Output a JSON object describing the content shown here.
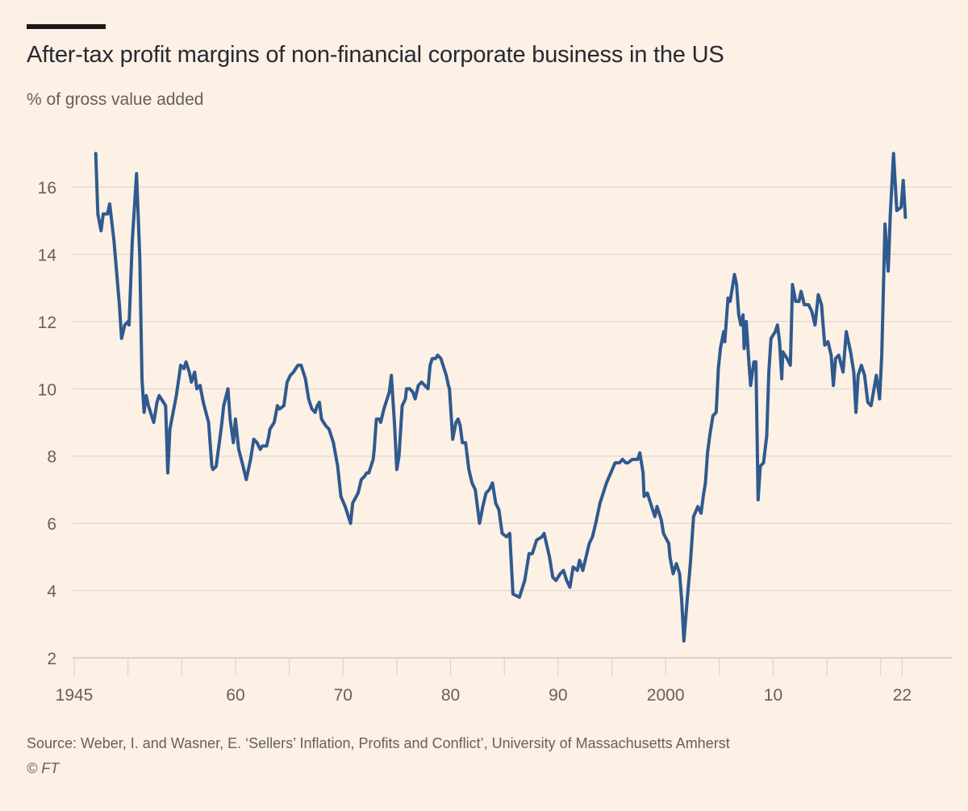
{
  "chart_data": {
    "type": "line",
    "title": "After-tax profit margins of non-financial corporate business in the US",
    "subtitle": "% of gross value added",
    "xlabel": "",
    "ylabel": "% of gross value added",
    "xlim": [
      1945,
      2025
    ],
    "ylim": [
      2,
      17.5
    ],
    "grid": true,
    "y_ticks": [
      2,
      4,
      6,
      8,
      10,
      12,
      14,
      16
    ],
    "y_tick_labels": [
      "2",
      "4",
      "6",
      "8",
      "10",
      "12",
      "14",
      "16"
    ],
    "x_tick_marks": [
      1945,
      1950,
      1955,
      1960,
      1965,
      1970,
      1975,
      1980,
      1985,
      1990,
      1995,
      2000,
      2005,
      2010,
      2015,
      2020,
      2022
    ],
    "x_labels": [
      {
        "year": 1945,
        "label": "1945"
      },
      {
        "year": 1960,
        "label": "60"
      },
      {
        "year": 1970,
        "label": "70"
      },
      {
        "year": 1980,
        "label": "80"
      },
      {
        "year": 1990,
        "label": "90"
      },
      {
        "year": 2000,
        "label": "2000"
      },
      {
        "year": 2010,
        "label": "10"
      },
      {
        "year": 2022,
        "label": "22"
      }
    ],
    "series": [
      {
        "name": "After-tax profit margin",
        "color": "#2f5a8e",
        "points": [
          [
            1947.0,
            17.0
          ],
          [
            1947.2,
            15.2
          ],
          [
            1947.5,
            14.7
          ],
          [
            1947.7,
            15.2
          ],
          [
            1948.1,
            15.2
          ],
          [
            1948.3,
            15.5
          ],
          [
            1948.7,
            14.4
          ],
          [
            1949.2,
            12.5
          ],
          [
            1949.4,
            11.5
          ],
          [
            1949.7,
            11.9
          ],
          [
            1950.0,
            12.0
          ],
          [
            1950.1,
            11.9
          ],
          [
            1950.4,
            14.4
          ],
          [
            1950.8,
            16.4
          ],
          [
            1951.1,
            13.9
          ],
          [
            1951.3,
            10.3
          ],
          [
            1951.5,
            9.3
          ],
          [
            1951.7,
            9.8
          ],
          [
            1951.9,
            9.5
          ],
          [
            1952.3,
            9.1
          ],
          [
            1952.4,
            9.0
          ],
          [
            1952.7,
            9.6
          ],
          [
            1952.9,
            9.8
          ],
          [
            1953.3,
            9.6
          ],
          [
            1953.5,
            9.5
          ],
          [
            1953.7,
            7.5
          ],
          [
            1953.9,
            8.8
          ],
          [
            1954.5,
            9.8
          ],
          [
            1954.9,
            10.7
          ],
          [
            1955.2,
            10.6
          ],
          [
            1955.4,
            10.8
          ],
          [
            1955.7,
            10.5
          ],
          [
            1955.9,
            10.2
          ],
          [
            1956.2,
            10.5
          ],
          [
            1956.4,
            10.0
          ],
          [
            1956.7,
            10.1
          ],
          [
            1957.0,
            9.6
          ],
          [
            1957.5,
            9.0
          ],
          [
            1957.8,
            7.7
          ],
          [
            1957.9,
            7.6
          ],
          [
            1958.2,
            7.7
          ],
          [
            1958.7,
            8.9
          ],
          [
            1958.9,
            9.5
          ],
          [
            1959.3,
            10.0
          ],
          [
            1959.5,
            9.1
          ],
          [
            1959.8,
            8.4
          ],
          [
            1960.0,
            9.1
          ],
          [
            1960.3,
            8.2
          ],
          [
            1960.7,
            7.7
          ],
          [
            1961.0,
            7.3
          ],
          [
            1961.4,
            7.9
          ],
          [
            1961.7,
            8.5
          ],
          [
            1962.0,
            8.4
          ],
          [
            1962.3,
            8.2
          ],
          [
            1962.5,
            8.3
          ],
          [
            1962.9,
            8.3
          ],
          [
            1963.1,
            8.6
          ],
          [
            1963.2,
            8.8
          ],
          [
            1963.6,
            9.0
          ],
          [
            1963.9,
            9.5
          ],
          [
            1964.1,
            9.4
          ],
          [
            1964.5,
            9.5
          ],
          [
            1964.8,
            10.2
          ],
          [
            1965.1,
            10.4
          ],
          [
            1965.4,
            10.5
          ],
          [
            1965.8,
            10.7
          ],
          [
            1966.1,
            10.7
          ],
          [
            1966.5,
            10.3
          ],
          [
            1966.8,
            9.7
          ],
          [
            1967.1,
            9.4
          ],
          [
            1967.4,
            9.3
          ],
          [
            1967.6,
            9.5
          ],
          [
            1967.8,
            9.6
          ],
          [
            1968.0,
            9.1
          ],
          [
            1968.4,
            8.9
          ],
          [
            1968.7,
            8.8
          ],
          [
            1969.1,
            8.4
          ],
          [
            1969.5,
            7.7
          ],
          [
            1969.8,
            6.8
          ],
          [
            1970.2,
            6.5
          ],
          [
            1970.4,
            6.3
          ],
          [
            1970.7,
            6.0
          ],
          [
            1970.9,
            6.6
          ],
          [
            1971.4,
            6.9
          ],
          [
            1971.7,
            7.3
          ],
          [
            1972.0,
            7.4
          ],
          [
            1972.2,
            7.5
          ],
          [
            1972.4,
            7.5
          ],
          [
            1972.8,
            7.9
          ],
          [
            1972.9,
            8.2
          ],
          [
            1973.1,
            9.1
          ],
          [
            1973.4,
            9.1
          ],
          [
            1973.5,
            9.0
          ],
          [
            1973.8,
            9.4
          ],
          [
            1974.1,
            9.7
          ],
          [
            1974.3,
            9.9
          ],
          [
            1974.5,
            10.4
          ],
          [
            1974.8,
            8.9
          ],
          [
            1975.0,
            7.6
          ],
          [
            1975.2,
            8.0
          ],
          [
            1975.5,
            9.5
          ],
          [
            1975.8,
            9.7
          ],
          [
            1975.9,
            10.0
          ],
          [
            1976.2,
            10.0
          ],
          [
            1976.5,
            9.9
          ],
          [
            1976.7,
            9.7
          ],
          [
            1977.0,
            10.1
          ],
          [
            1977.3,
            10.2
          ],
          [
            1977.6,
            10.1
          ],
          [
            1977.9,
            10.0
          ],
          [
            1978.1,
            10.7
          ],
          [
            1978.3,
            10.9
          ],
          [
            1978.6,
            10.9
          ],
          [
            1978.8,
            11.0
          ],
          [
            1979.1,
            10.9
          ],
          [
            1979.6,
            10.4
          ],
          [
            1979.8,
            10.1
          ],
          [
            1979.9,
            10.0
          ],
          [
            1980.2,
            8.5
          ],
          [
            1980.5,
            9.0
          ],
          [
            1980.7,
            9.1
          ],
          [
            1980.9,
            8.9
          ],
          [
            1981.1,
            8.4
          ],
          [
            1981.4,
            8.4
          ],
          [
            1981.7,
            7.6
          ],
          [
            1982.0,
            7.2
          ],
          [
            1982.3,
            7.0
          ],
          [
            1982.7,
            6.0
          ],
          [
            1983.0,
            6.5
          ],
          [
            1983.3,
            6.9
          ],
          [
            1983.6,
            7.0
          ],
          [
            1983.9,
            7.2
          ],
          [
            1984.2,
            6.6
          ],
          [
            1984.5,
            6.4
          ],
          [
            1984.8,
            5.7
          ],
          [
            1985.2,
            5.6
          ],
          [
            1985.5,
            5.7
          ],
          [
            1985.8,
            3.9
          ],
          [
            1986.4,
            3.8
          ],
          [
            1986.9,
            4.3
          ],
          [
            1987.3,
            5.1
          ],
          [
            1987.6,
            5.1
          ],
          [
            1988.0,
            5.5
          ],
          [
            1988.5,
            5.6
          ],
          [
            1988.7,
            5.7
          ],
          [
            1989.2,
            5.0
          ],
          [
            1989.5,
            4.4
          ],
          [
            1989.8,
            4.3
          ],
          [
            1990.2,
            4.5
          ],
          [
            1990.5,
            4.6
          ],
          [
            1990.8,
            4.3
          ],
          [
            1991.1,
            4.1
          ],
          [
            1991.4,
            4.7
          ],
          [
            1991.8,
            4.6
          ],
          [
            1992.0,
            4.9
          ],
          [
            1992.3,
            4.6
          ],
          [
            1992.6,
            5.0
          ],
          [
            1992.9,
            5.4
          ],
          [
            1993.2,
            5.6
          ],
          [
            1993.5,
            6.0
          ],
          [
            1993.9,
            6.6
          ],
          [
            1994.2,
            6.9
          ],
          [
            1994.5,
            7.2
          ],
          [
            1994.9,
            7.5
          ],
          [
            1995.3,
            7.8
          ],
          [
            1995.6,
            7.8
          ],
          [
            1995.7,
            7.8
          ],
          [
            1996.0,
            7.9
          ],
          [
            1996.3,
            7.8
          ],
          [
            1996.5,
            7.8
          ],
          [
            1996.9,
            7.9
          ],
          [
            1997.4,
            7.9
          ],
          [
            1997.6,
            8.1
          ],
          [
            1997.9,
            7.5
          ],
          [
            1998.0,
            6.8
          ],
          [
            1998.3,
            6.9
          ],
          [
            1998.7,
            6.5
          ],
          [
            1999.0,
            6.2
          ],
          [
            1999.2,
            6.5
          ],
          [
            1999.6,
            6.1
          ],
          [
            1999.8,
            5.7
          ],
          [
            2000.3,
            5.4
          ],
          [
            2000.4,
            5.0
          ],
          [
            2000.7,
            4.5
          ],
          [
            2001.0,
            4.8
          ],
          [
            2001.3,
            4.5
          ],
          [
            2001.5,
            3.7
          ],
          [
            2001.7,
            2.5
          ],
          [
            2002.0,
            3.7
          ],
          [
            2002.3,
            4.8
          ],
          [
            2002.6,
            6.2
          ],
          [
            2003.0,
            6.5
          ],
          [
            2003.3,
            6.3
          ],
          [
            2003.5,
            6.8
          ],
          [
            2003.7,
            7.2
          ],
          [
            2003.9,
            8.1
          ],
          [
            2004.1,
            8.6
          ],
          [
            2004.4,
            9.2
          ],
          [
            2004.7,
            9.3
          ],
          [
            2004.8,
            9.9
          ],
          [
            2004.9,
            10.6
          ],
          [
            2005.1,
            11.2
          ],
          [
            2005.4,
            11.7
          ],
          [
            2005.5,
            11.4
          ],
          [
            2005.8,
            12.7
          ],
          [
            2006.0,
            12.6
          ],
          [
            2006.4,
            13.4
          ],
          [
            2006.6,
            13.1
          ],
          [
            2006.8,
            12.2
          ],
          [
            2007.0,
            11.9
          ],
          [
            2007.2,
            12.2
          ],
          [
            2007.3,
            11.2
          ],
          [
            2007.5,
            12.0
          ],
          [
            2007.7,
            11.0
          ],
          [
            2007.9,
            10.1
          ],
          [
            2008.2,
            10.8
          ],
          [
            2008.4,
            10.8
          ],
          [
            2008.6,
            6.7
          ],
          [
            2008.8,
            7.7
          ],
          [
            2009.1,
            7.8
          ],
          [
            2009.4,
            8.6
          ],
          [
            2009.6,
            10.5
          ],
          [
            2009.8,
            11.5
          ],
          [
            2010.2,
            11.7
          ],
          [
            2010.4,
            11.9
          ],
          [
            2010.6,
            11.4
          ],
          [
            2010.8,
            10.3
          ],
          [
            2010.9,
            11.1
          ],
          [
            2011.3,
            10.9
          ],
          [
            2011.6,
            10.7
          ],
          [
            2011.8,
            13.1
          ],
          [
            2012.1,
            12.6
          ],
          [
            2012.4,
            12.6
          ],
          [
            2012.6,
            12.9
          ],
          [
            2012.9,
            12.5
          ],
          [
            2013.3,
            12.5
          ],
          [
            2013.6,
            12.3
          ],
          [
            2013.9,
            11.9
          ],
          [
            2014.2,
            12.8
          ],
          [
            2014.5,
            12.5
          ],
          [
            2014.8,
            11.3
          ],
          [
            2015.1,
            11.4
          ],
          [
            2015.4,
            11.0
          ],
          [
            2015.6,
            10.1
          ],
          [
            2015.8,
            10.9
          ],
          [
            2016.1,
            11.0
          ],
          [
            2016.5,
            10.5
          ],
          [
            2016.8,
            11.7
          ],
          [
            2017.2,
            11.1
          ],
          [
            2017.5,
            10.5
          ],
          [
            2017.7,
            9.3
          ],
          [
            2017.9,
            10.4
          ],
          [
            2018.2,
            10.7
          ],
          [
            2018.5,
            10.4
          ],
          [
            2018.8,
            9.6
          ],
          [
            2019.1,
            9.5
          ],
          [
            2019.6,
            10.4
          ],
          [
            2019.9,
            9.7
          ],
          [
            2020.1,
            11.0
          ],
          [
            2020.4,
            14.9
          ],
          [
            2020.7,
            13.5
          ],
          [
            2020.9,
            15.2
          ],
          [
            2021.2,
            17.0
          ],
          [
            2021.5,
            15.3
          ],
          [
            2021.9,
            15.4
          ],
          [
            2022.1,
            16.2
          ],
          [
            2022.3,
            15.1
          ]
        ]
      }
    ]
  },
  "source": "Source: Weber, I. and Wasner, E. ‘Sellers’ Inflation, Profits and Conflict’, University of Massachusetts Amherst",
  "credit": "© FT"
}
